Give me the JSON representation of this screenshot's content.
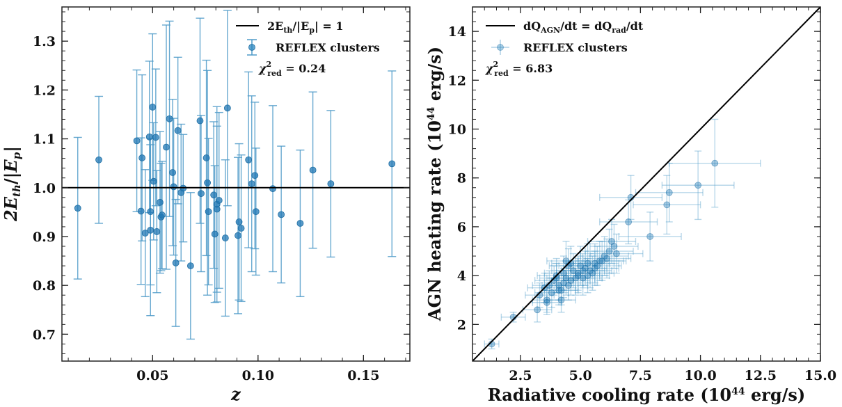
{
  "colors": {
    "points": "#1f77b4",
    "line": "#000000",
    "frame": "#222222"
  },
  "chart_data": [
    {
      "type": "scatter",
      "xlabel": "z",
      "ylabel": "2E_th/|E_p|",
      "xlim": [
        0.007,
        0.172
      ],
      "ylim": [
        0.645,
        1.37
      ],
      "xticks": [
        0.05,
        0.1,
        0.15
      ],
      "xtick_labels": [
        "0.05",
        "0.10",
        "0.15"
      ],
      "yticks": [
        0.7,
        0.8,
        0.9,
        1.0,
        1.1,
        1.2,
        1.3
      ],
      "ytick_labels": [
        "0.7",
        "0.8",
        "0.9",
        "1.0",
        "1.1",
        "1.2",
        "1.3"
      ],
      "reference_line": {
        "y": 1.0,
        "label": "2E_th/|E_p| = 1"
      },
      "legend_location": "top-right",
      "series": [
        {
          "name": "REFLEX clusters",
          "x": [
            0.0145,
            0.0245,
            0.0425,
            0.0445,
            0.045,
            0.0465,
            0.0485,
            0.049,
            0.049,
            0.05,
            0.0505,
            0.0515,
            0.052,
            0.0535,
            0.054,
            0.0545,
            0.0565,
            0.058,
            0.0595,
            0.06,
            0.061,
            0.062,
            0.0635,
            0.0645,
            0.068,
            0.0725,
            0.073,
            0.0755,
            0.076,
            0.0765,
            0.0795,
            0.079,
            0.0805,
            0.0805,
            0.0815,
            0.0845,
            0.0855,
            0.0905,
            0.091,
            0.092,
            0.0955,
            0.097,
            0.0985,
            0.099,
            0.107,
            0.111,
            0.12,
            0.126,
            0.1345,
            0.1635
          ],
          "y": [
            0.958,
            1.057,
            1.096,
            0.952,
            1.061,
            0.907,
            1.104,
            0.913,
            0.951,
            1.165,
            1.013,
            1.103,
            0.91,
            0.97,
            0.94,
            0.944,
            1.083,
            1.141,
            1.031,
            1.002,
            0.846,
            1.117,
            0.99,
            0.999,
            0.84,
            1.137,
            0.988,
            1.061,
            1.01,
            0.951,
            0.905,
            0.985,
            0.956,
            0.966,
            0.974,
            0.897,
            1.163,
            0.902,
            0.93,
            0.917,
            1.057,
            1.008,
            1.025,
            0.951,
            0.998,
            0.945,
            0.927,
            1.036,
            1.008,
            1.049
          ],
          "yerr": [
            0.145,
            0.13,
            0.145,
            0.15,
            0.17,
            0.13,
            0.155,
            0.175,
            0.15,
            0.15,
            0.12,
            0.14,
            0.125,
            0.145,
            0.11,
            0.11,
            0.25,
            0.2,
            0.15,
            0.14,
            0.13,
            0.15,
            0.14,
            0.11,
            0.15,
            0.21,
            0.16,
            0.2,
            0.23,
            0.15,
            0.14,
            0.15,
            0.17,
            0.2,
            0.18,
            0.16,
            0.2,
            0.16,
            0.16,
            0.15,
            0.18,
            0.18,
            0.15,
            0.13,
            0.17,
            0.14,
            0.15,
            0.16,
            0.15,
            0.19
          ]
        }
      ],
      "annotation": "χ²_red = 0.24"
    },
    {
      "type": "scatter",
      "xlabel": "Radiative cooling rate (10^44 erg/s)",
      "ylabel": "AGN heating rate (10^44 erg/s)",
      "xlim": [
        0.5,
        15.0
      ],
      "ylim": [
        0.5,
        15.0
      ],
      "xticks": [
        2.5,
        5.0,
        7.5,
        10.0,
        12.5,
        15.0
      ],
      "xtick_labels": [
        "2.5",
        "5.0",
        "7.5",
        "10.0",
        "12.5",
        "15.0"
      ],
      "yticks": [
        2,
        4,
        6,
        8,
        10,
        12,
        14
      ],
      "ytick_labels": [
        "2",
        "4",
        "6",
        "8",
        "10",
        "12",
        "14"
      ],
      "reference_line": {
        "type": "identity",
        "label": "dQ_AGN/dt = dQ_rad/dt"
      },
      "legend_location": "top-left",
      "series": [
        {
          "name": "REFLEX clusters",
          "x": [
            1.3,
            2.2,
            3.2,
            3.5,
            3.6,
            3.8,
            3.9,
            4.0,
            4.1,
            4.2,
            4.2,
            4.3,
            4.4,
            4.4,
            4.5,
            4.6,
            4.7,
            4.8,
            4.9,
            5.0,
            5.1,
            5.2,
            5.3,
            5.4,
            5.5,
            5.6,
            5.8,
            6.0,
            6.2,
            6.3,
            6.4,
            7.0,
            7.1,
            7.9,
            8.6,
            8.7,
            9.9,
            10.6,
            3.3,
            3.6,
            3.7,
            4.0,
            4.1,
            4.3,
            4.5,
            4.6,
            4.9,
            5.1,
            5.3,
            5.6,
            5.7,
            5.9,
            6.1,
            6.5
          ],
          "y": [
            1.2,
            2.3,
            2.6,
            3.5,
            3.0,
            3.3,
            3.8,
            4.0,
            3.6,
            3.4,
            3.0,
            4.1,
            3.9,
            4.6,
            3.6,
            3.8,
            4.2,
            3.9,
            4.1,
            4.4,
            3.9,
            4.3,
            4.0,
            4.2,
            4.1,
            4.5,
            4.6,
            4.8,
            5.0,
            5.4,
            5.2,
            6.2,
            7.2,
            5.6,
            6.9,
            7.4,
            7.7,
            8.6,
            3.2,
            2.9,
            3.6,
            3.9,
            3.4,
            3.7,
            4.4,
            4.5,
            4.0,
            4.2,
            4.5,
            4.3,
            4.4,
            4.6,
            4.7,
            4.9
          ],
          "xerr": [
            0.3,
            0.5,
            0.6,
            0.7,
            0.6,
            0.7,
            0.8,
            0.8,
            0.7,
            0.7,
            0.6,
            0.8,
            0.8,
            0.8,
            0.8,
            0.8,
            0.9,
            0.8,
            0.9,
            0.9,
            0.8,
            0.9,
            0.9,
            0.9,
            0.9,
            1.0,
            1.0,
            1.0,
            1.0,
            1.0,
            1.0,
            1.2,
            1.3,
            1.3,
            1.4,
            1.4,
            1.5,
            1.9,
            0.6,
            0.6,
            0.7,
            0.7,
            0.7,
            0.8,
            0.8,
            0.8,
            0.9,
            0.9,
            0.9,
            1.0,
            1.0,
            1.0,
            1.0,
            1.1
          ],
          "yerr": [
            0.2,
            0.2,
            0.5,
            0.6,
            0.5,
            0.6,
            0.6,
            0.7,
            0.6,
            0.6,
            0.5,
            0.7,
            0.7,
            0.8,
            0.6,
            0.6,
            0.7,
            0.7,
            0.7,
            0.8,
            0.7,
            0.7,
            0.7,
            0.7,
            0.7,
            0.8,
            0.8,
            0.8,
            0.9,
            0.9,
            0.9,
            0.9,
            0.9,
            1.0,
            1.2,
            1.2,
            1.4,
            1.8,
            0.5,
            0.5,
            0.6,
            0.6,
            0.6,
            0.6,
            0.7,
            0.7,
            0.7,
            0.7,
            0.8,
            0.7,
            0.8,
            0.8,
            0.8,
            0.8
          ]
        }
      ],
      "annotation": "χ²_red = 6.83"
    }
  ]
}
